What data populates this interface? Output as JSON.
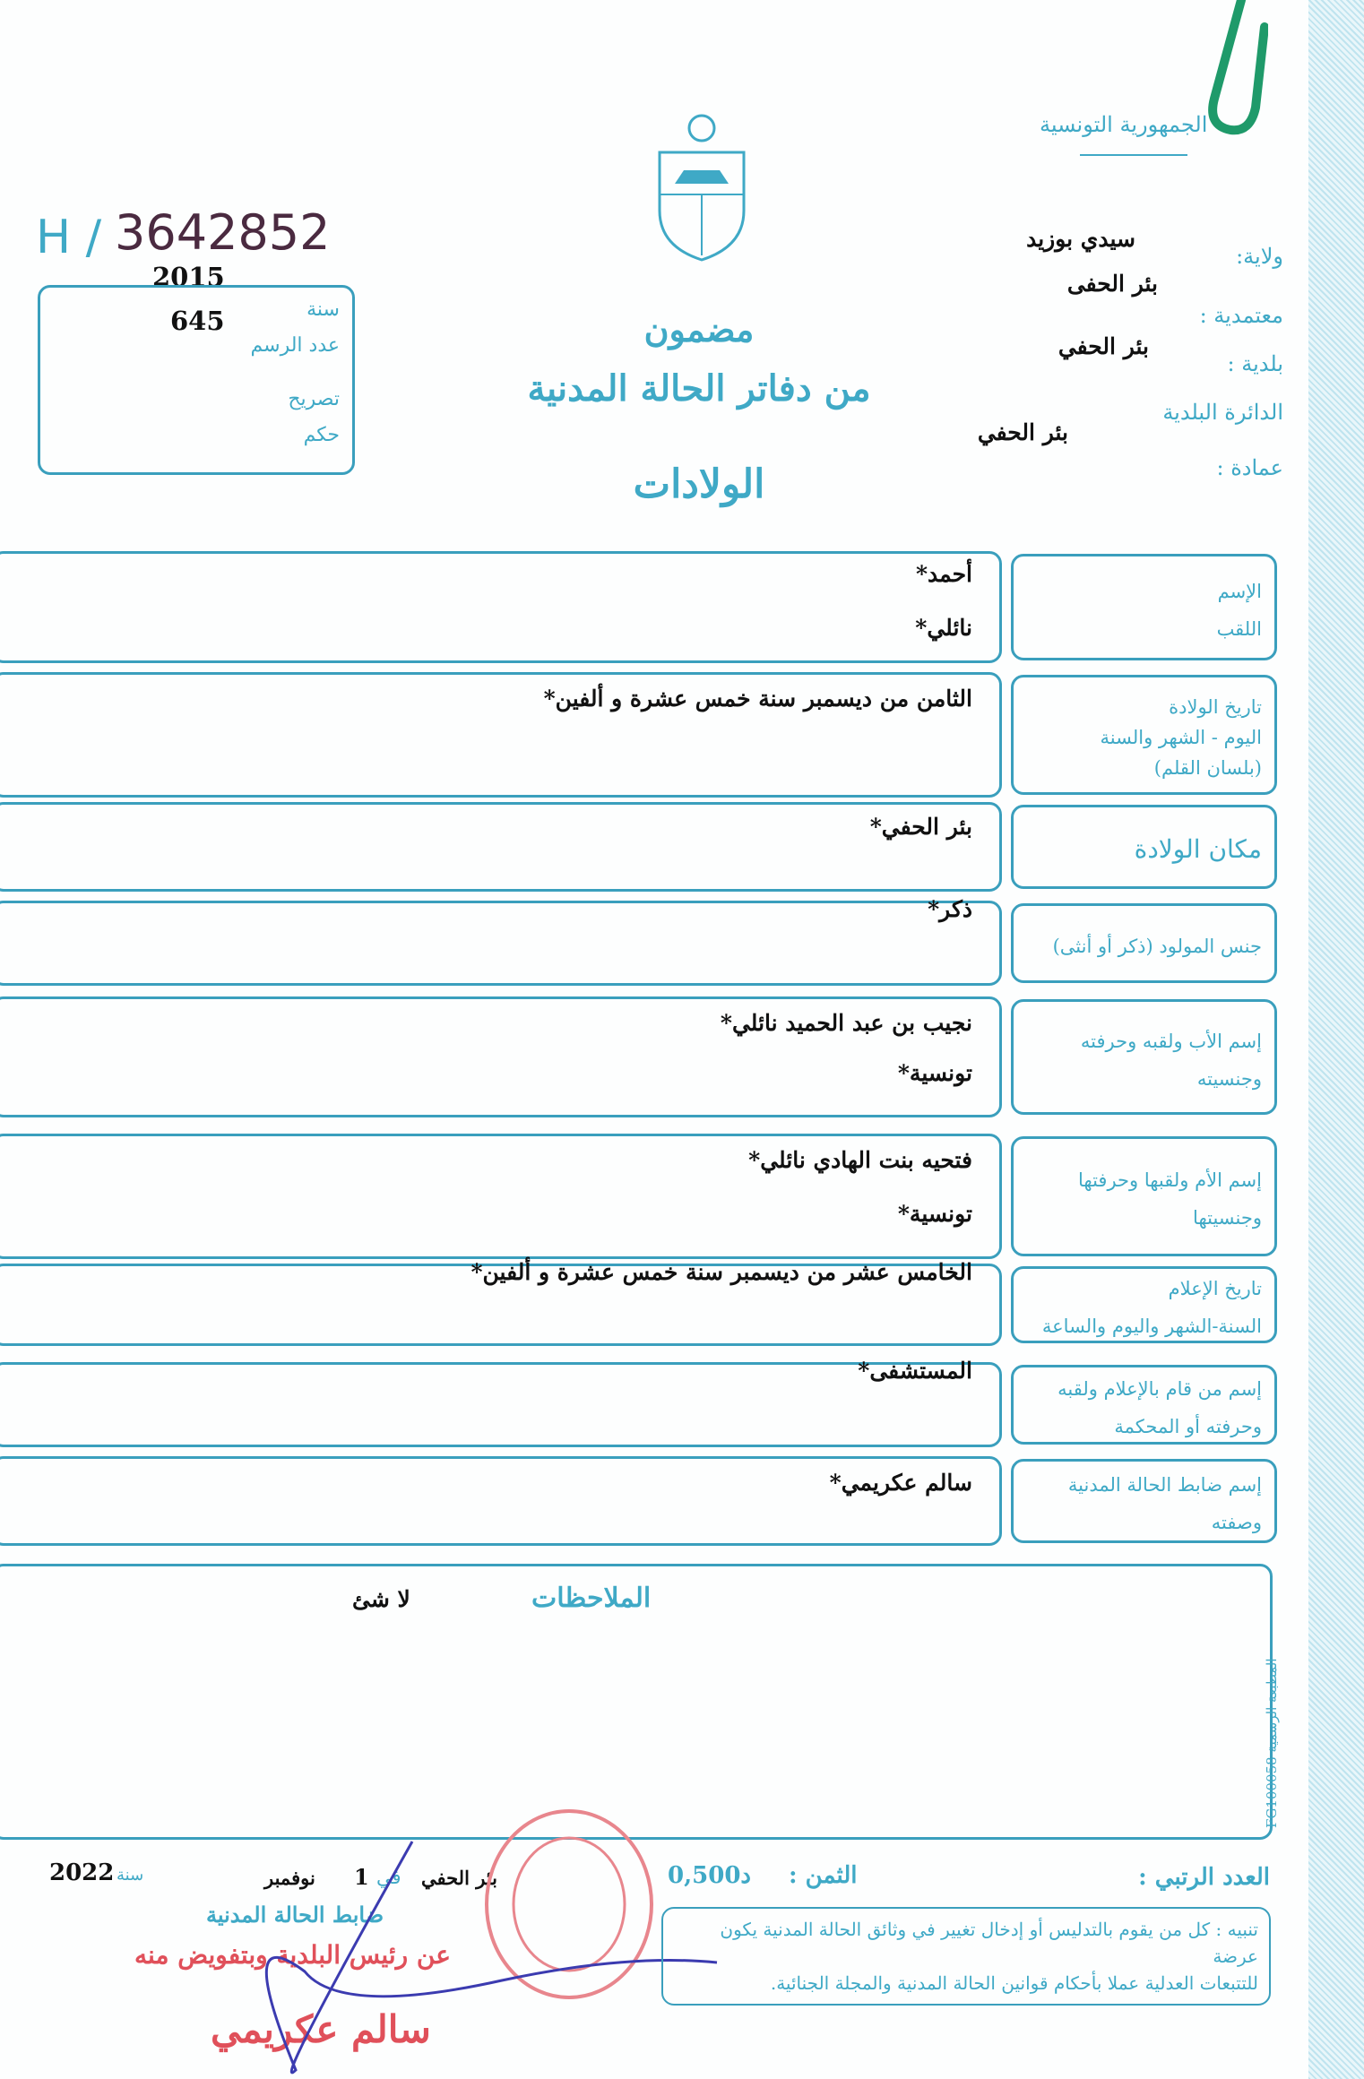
{
  "header": {
    "republic": "الجمهورية التونسية",
    "serial_prefix": "H /",
    "serial_number": "3642852",
    "title_line1": "مضمون",
    "title_line2": "من دفاتر الحالة المدنية",
    "title_line3": "الولادات"
  },
  "record_box": {
    "year_value": "2015",
    "number_value": "645",
    "year_label": "سنة",
    "number_label": "عدد الرسم",
    "declaration_label": "تصريح",
    "judgment_label": "حكم"
  },
  "admin": {
    "governorate_label": "ولاية:",
    "governorate_value": "سيدي بوزيد",
    "delegation_label": "معتمدية :",
    "delegation_value": "بئر الحفى",
    "municipality_label": "بلدية :",
    "municipality_value": "بئر الحفي",
    "district_label": "الدائرة البلدية",
    "district_value": "بئر الحفي",
    "imada_label": "عمادة :"
  },
  "rows": [
    {
      "labels": [
        "الإسم",
        "اللقب"
      ],
      "values": [
        "أحمد*",
        "نائلي*"
      ]
    },
    {
      "labels": [
        "تاريخ الولادة",
        "اليوم - الشهر والسنة",
        "(بلسان القلم)"
      ],
      "values": [
        "الثامن من ديسمبر سنة خمس عشرة و ألفين*"
      ]
    },
    {
      "labels": [
        "مكان الولادة"
      ],
      "values": [
        "بئر الحفي*"
      ]
    },
    {
      "labels": [
        "جنس المولود (ذكر أو أنثى)"
      ],
      "values": [
        "ذكر*"
      ]
    },
    {
      "labels": [
        "إسم الأب ولقبه وحرفته",
        "وجنسيته"
      ],
      "values": [
        "نجيب بن عبد الحميد نائلي*",
        "تونسية*"
      ]
    },
    {
      "labels": [
        "إسم الأم ولقبها وحرفتها",
        "وجنسيتها"
      ],
      "values": [
        "فتحيه بنت الهادي نائلي*",
        "تونسية*"
      ]
    },
    {
      "labels": [
        "تاريخ الإعلام",
        "السنة-الشهر واليوم والساعة"
      ],
      "values": [
        "الخامس عشر من ديسمبر سنة خمس عشرة و ألفين*"
      ]
    },
    {
      "labels": [
        "إسم من قام بالإعلام ولقبه",
        "وحرفته أو المحكمة"
      ],
      "values": [
        "المستشفى*"
      ]
    },
    {
      "labels": [
        "إسم ضابط الحالة المدنية",
        "وصفته"
      ],
      "values": [
        "سالم عكريمي*"
      ]
    }
  ],
  "remarks": {
    "label": "الملاحظات",
    "value": "لا شئ"
  },
  "printer": "المطبعة الرسمية FG100058",
  "footer": {
    "serial_label": "العدد الرتبي :",
    "price_label": "الثمن :",
    "price_value": "0,500د",
    "place": "بئر الحفي",
    "date_prefix": "في",
    "day": "1",
    "month": "نوفمبر",
    "year_label": "سنة",
    "year": "2022",
    "officer_title": "ضابط الحالة المدنية",
    "delegation": "عن رئيس البلدية وبتفويض منه",
    "officer_name": "سالم عكريمي",
    "notice_line1": "تنبيه : كل من يقوم بالتدليس أو إدخال تغيير في وثائق الحالة المدنية يكون عرضة",
    "notice_line2": "للتتبعات العدلية عملا بأحكام قوانين الحالة المدنية والمجلة الجنائية."
  },
  "colors": {
    "form_blue": "#3fa9c6",
    "stamp_red": "#e0505a",
    "clip_green": "#1f9a6a",
    "ink": "#111111"
  }
}
